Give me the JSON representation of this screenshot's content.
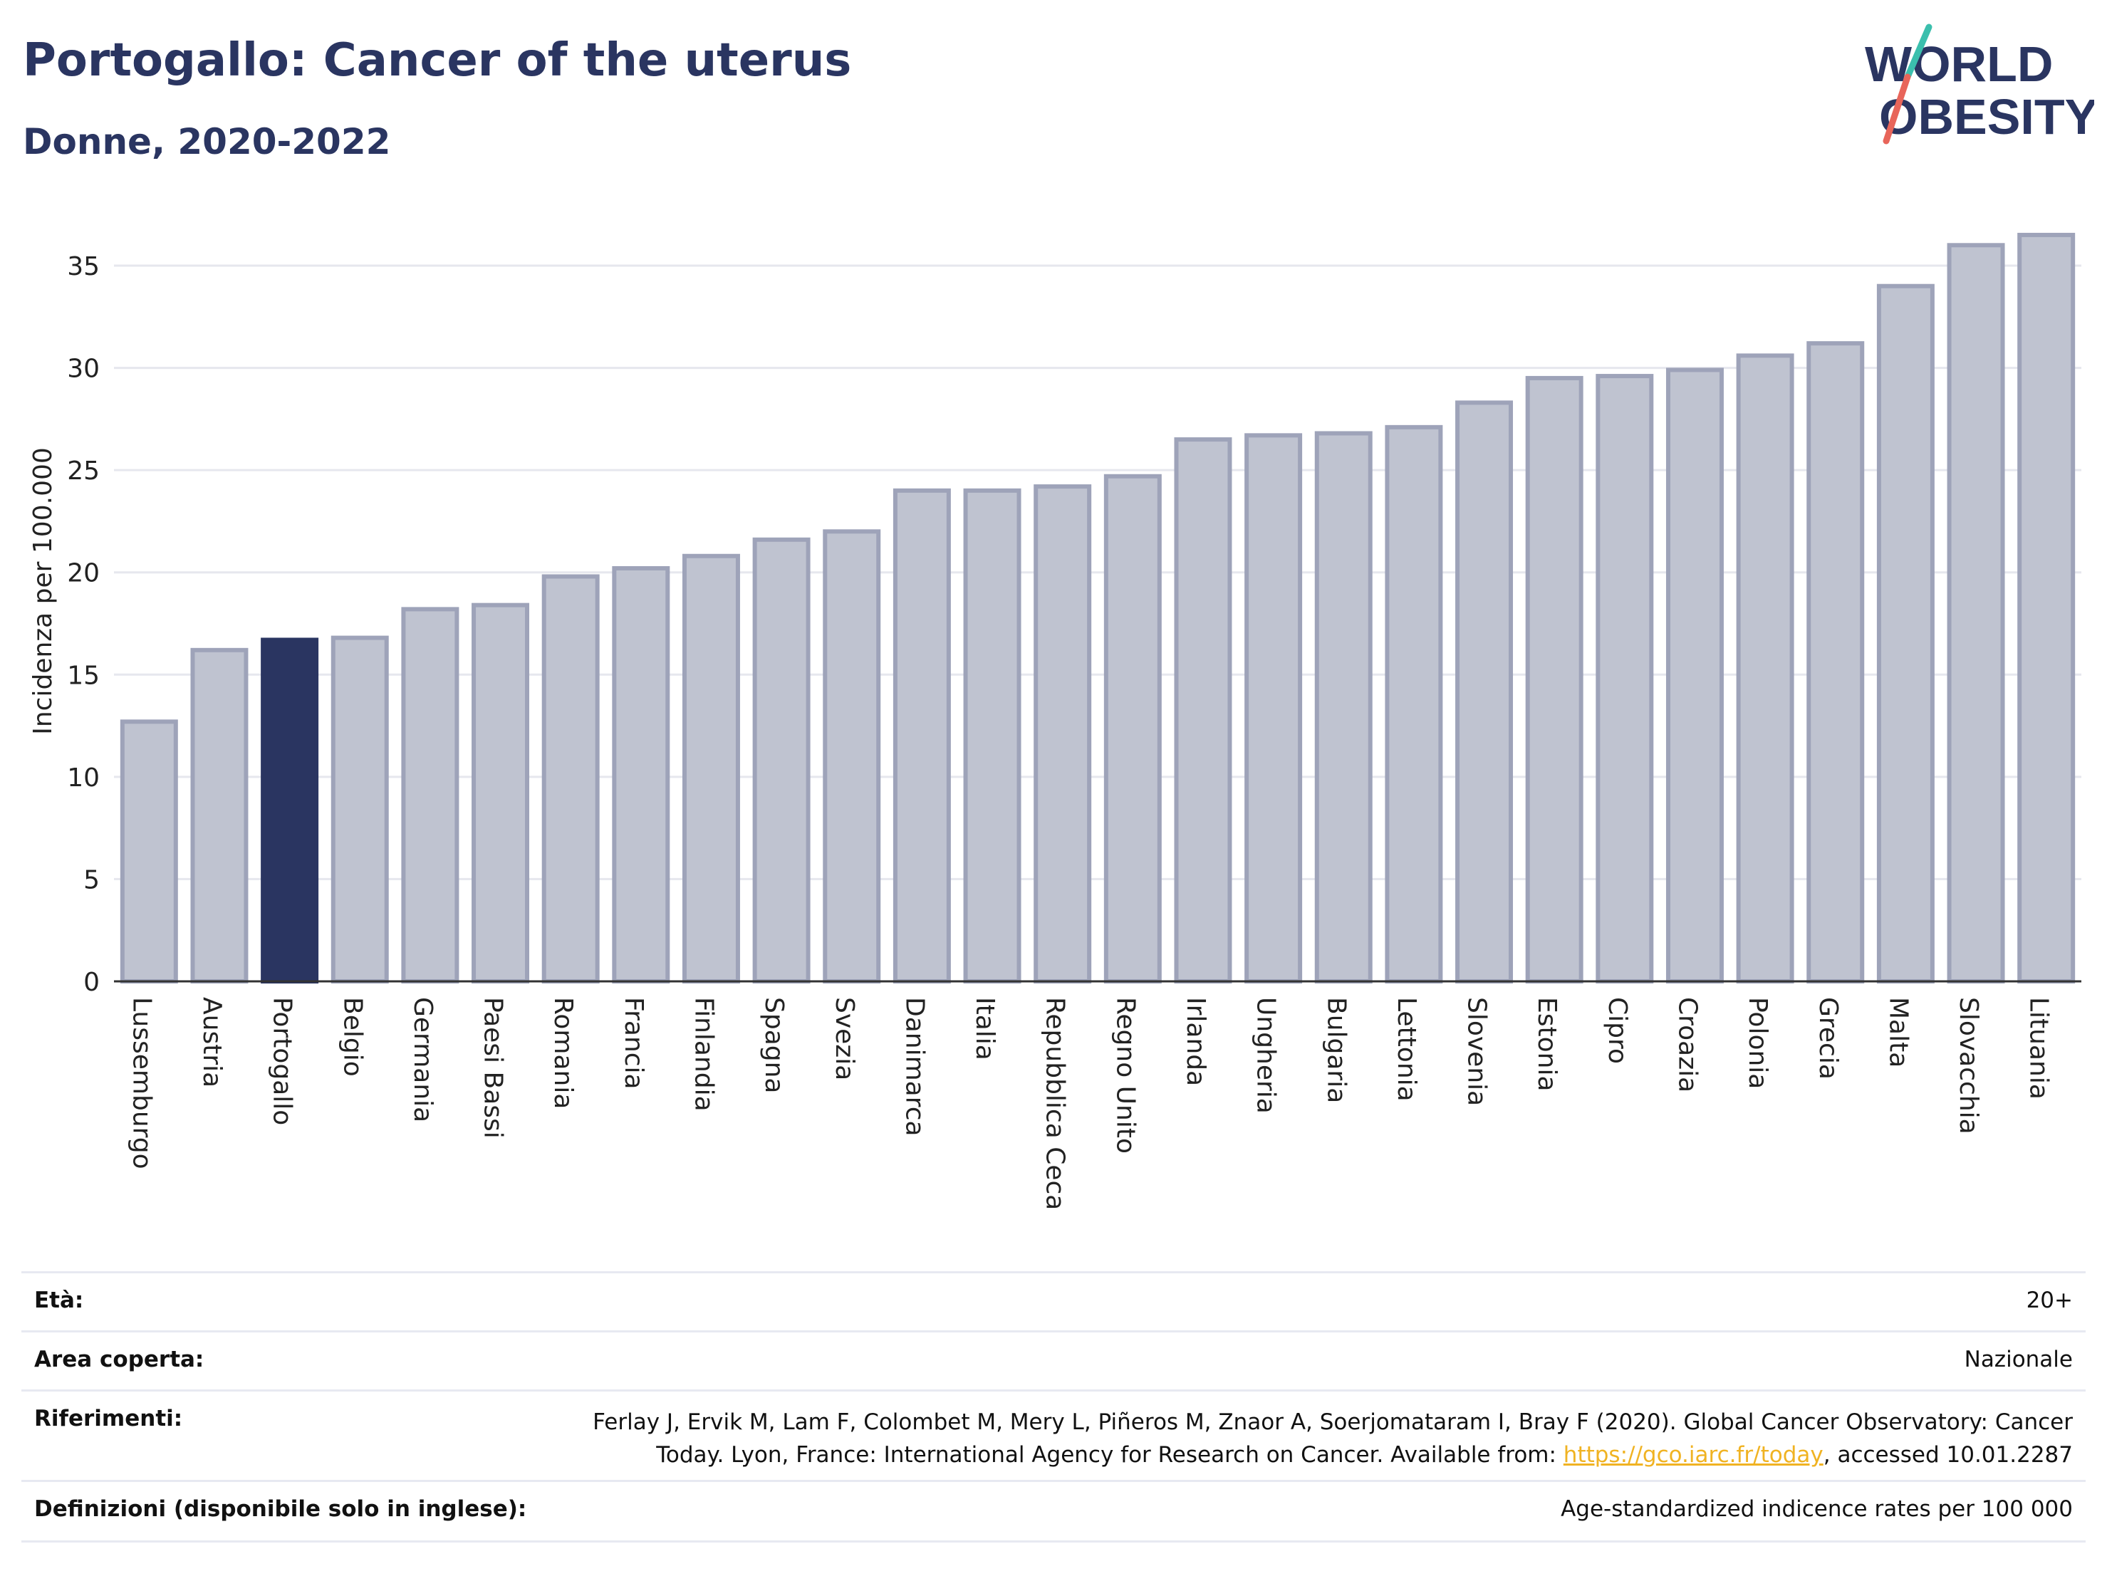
{
  "header": {
    "title": "Portogallo: Cancer of the uterus",
    "subtitle": "Donne, 2020-2022",
    "logo_line1": "WORLD",
    "logo_line2": "OBESITY"
  },
  "colors": {
    "bar": "#bfc3d0",
    "bar_stroke": "#9ea3b9",
    "highlight": "#2a3561",
    "title": "#2a3561",
    "logo_teal": "#3bbfad",
    "logo_coral": "#e8655a",
    "link": "#f0b323"
  },
  "chart_data": {
    "type": "bar",
    "title": "Portogallo: Cancer of the uterus",
    "subtitle": "Donne, 2020-2022",
    "xlabel": "",
    "ylabel": "Incidenza per 100.000",
    "ylim": [
      0,
      37
    ],
    "yticks": [
      0,
      5,
      10,
      15,
      20,
      25,
      30,
      35
    ],
    "grid": true,
    "highlight": "Portogallo",
    "categories": [
      "Lussemburgo",
      "Austria",
      "Portogallo",
      "Belgio",
      "Germania",
      "Paesi Bassi",
      "Romania",
      "Francia",
      "Finlandia",
      "Spagna",
      "Svezia",
      "Danimarca",
      "Italia",
      "Repubblica Ceca",
      "Regno Unito",
      "Irlanda",
      "Ungheria",
      "Bulgaria",
      "Lettonia",
      "Slovenia",
      "Estonia",
      "Cipro",
      "Croazia",
      "Polonia",
      "Grecia",
      "Malta",
      "Slovacchia",
      "Lituania"
    ],
    "values": [
      12.7,
      16.2,
      16.7,
      16.8,
      18.2,
      18.4,
      19.8,
      20.2,
      20.8,
      21.6,
      22.0,
      24.0,
      24.0,
      24.2,
      24.7,
      26.5,
      26.7,
      26.8,
      27.1,
      28.3,
      29.5,
      29.6,
      29.9,
      30.6,
      31.2,
      34.0,
      36.0,
      36.5
    ]
  },
  "info": {
    "age_label": "Età:",
    "age_value": "20+",
    "area_label": "Area coperta:",
    "area_value": "Nazionale",
    "refs_label": "Riferimenti:",
    "refs_line1": "Ferlay J, Ervik M, Lam F, Colombet M, Mery L, Piñeros M, Znaor A, Soerjomataram I, Bray F (2020). Global Cancer Observatory: Cancer",
    "refs_line2_pre": "Today. Lyon, France: International Agency for Research on Cancer. Available from: ",
    "refs_link": "https://gco.iarc.fr/today",
    "refs_line2_post": ", accessed 10.01.2287",
    "defs_label": "Definizioni (disponibile solo in inglese):",
    "defs_value": "Age-standardized indicence rates per 100 000"
  }
}
